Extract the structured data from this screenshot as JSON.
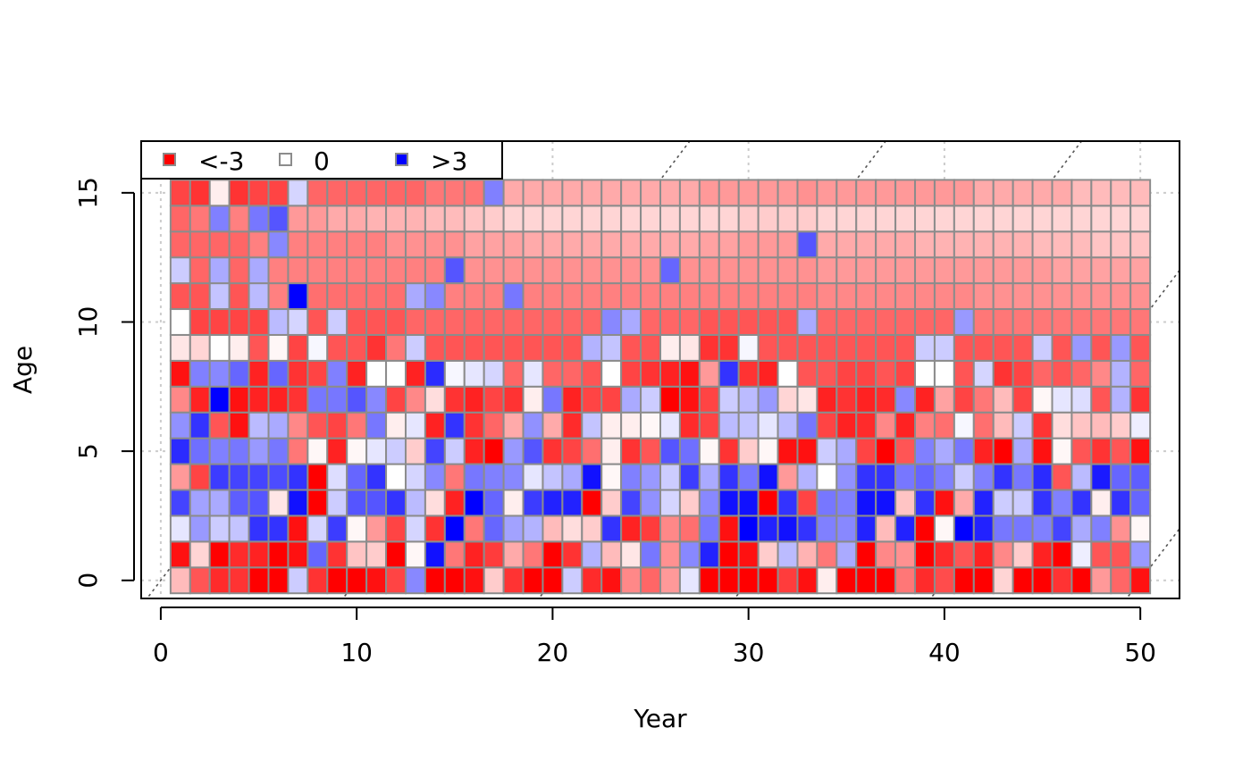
{
  "chart_data": {
    "type": "heatmap",
    "title": "",
    "xlabel": "Year",
    "ylabel": "Age",
    "xlim": [
      -1,
      52
    ],
    "ylim": [
      -0.7,
      17
    ],
    "x_ticks": [
      0,
      10,
      20,
      30,
      40,
      50
    ],
    "x_tick_labels": [
      "0",
      "10",
      "20",
      "30",
      "40",
      "50"
    ],
    "y_ticks": [
      0,
      5,
      10,
      15
    ],
    "y_tick_labels": [
      "0",
      "5",
      "10",
      "15"
    ],
    "grid": true,
    "legend_position": "top-left",
    "legend": [
      {
        "label": "<-3",
        "color": "#ff0000"
      },
      {
        "label": "0",
        "color": "#ffffff"
      },
      {
        "label": ">3",
        "color": "#0000ff"
      }
    ],
    "color_scale": {
      "min": -3,
      "mid": 0,
      "max": 3,
      "low_color": "#ff0000",
      "mid_color": "#ffffff",
      "high_color": "#0000ff"
    },
    "cell_border_color": "#8c8c8c",
    "x_values": [
      1,
      2,
      3,
      4,
      5,
      6,
      7,
      8,
      9,
      10,
      11,
      12,
      13,
      14,
      15,
      16,
      17,
      18,
      19,
      20,
      21,
      22,
      23,
      24,
      25,
      26,
      27,
      28,
      29,
      30,
      31,
      32,
      33,
      34,
      35,
      36,
      37,
      38,
      39,
      40,
      41,
      42,
      43,
      44,
      45,
      46,
      47,
      48,
      49,
      50
    ],
    "y_values": [
      0,
      1,
      2,
      3,
      4,
      5,
      6,
      7,
      8,
      9,
      10,
      11,
      12,
      13,
      14,
      15
    ],
    "z_rows_by_age": [
      [
        -0.8,
        -2.0,
        -2.5,
        -2.4,
        -3.0,
        -3.0,
        0.6,
        -2.4,
        -3.0,
        -3.0,
        -2.8,
        -2.2,
        1.4,
        -3.0,
        -3.0,
        -2.8,
        -0.6,
        -2.4,
        -3.0,
        -3.0,
        0.6,
        -2.5,
        -2.8,
        -1.4,
        -1.8,
        -1.2,
        0.3,
        -3.0,
        -3.0,
        -3.0,
        -3.0,
        -2.3,
        -2.8,
        -0.2,
        -3.0,
        -3.0,
        -3.0,
        -1.6,
        -2.5,
        -2.1,
        -3.0,
        -3.0,
        -0.5,
        -3.0,
        -3.0,
        -2.4,
        -3.0,
        -1.2,
        -1.8,
        -2.8
      ],
      [
        -2.8,
        -0.5,
        -3.0,
        -2.5,
        -2.6,
        -3.0,
        -2.8,
        1.8,
        -2.4,
        -0.7,
        -0.6,
        -3.0,
        -0.1,
        2.8,
        -1.6,
        -2.6,
        -2.3,
        -1.0,
        -1.6,
        -3.0,
        -2.4,
        0.9,
        -0.8,
        -0.3,
        1.6,
        -1.3,
        1.4,
        2.6,
        -3.0,
        -2.8,
        -0.6,
        0.8,
        -0.9,
        -1.6,
        1.0,
        -3.0,
        -1.4,
        -1.3,
        -3.0,
        -2.5,
        -2.0,
        -2.6,
        -1.4,
        -0.6,
        -2.6,
        -3.0,
        0.2,
        -2.0,
        -2.0,
        1.2
      ],
      [
        0.3,
        1.2,
        0.6,
        0.7,
        2.4,
        2.4,
        -2.8,
        0.5,
        2.3,
        -0.1,
        -1.2,
        -2.2,
        0.5,
        -2.4,
        3.0,
        -1.6,
        1.8,
        1.1,
        0.9,
        -0.8,
        -0.4,
        -0.6,
        2.4,
        -2.6,
        -2.3,
        -1.4,
        -1.7,
        1.6,
        -2.8,
        3.0,
        2.6,
        2.8,
        2.4,
        1.5,
        1.4,
        2.6,
        -0.8,
        2.6,
        -3.0,
        -0.1,
        3.0,
        2.6,
        1.6,
        1.6,
        1.5,
        2.2,
        1.0,
        1.5,
        -1.3,
        -0.1
      ],
      [
        2.2,
        1.1,
        1.0,
        1.9,
        2.0,
        -0.3,
        2.8,
        -3.0,
        0.6,
        2.0,
        2.0,
        2.4,
        0.8,
        -0.4,
        -2.6,
        3.0,
        1.8,
        -0.2,
        2.3,
        2.6,
        2.6,
        -3.0,
        -0.6,
        2.2,
        1.3,
        0.5,
        -0.6,
        1.4,
        2.8,
        2.8,
        -3.0,
        2.4,
        -2.2,
        1.6,
        1.5,
        2.8,
        2.8,
        -0.7,
        2.4,
        -2.8,
        -1.0,
        2.6,
        0.6,
        0.6,
        2.4,
        1.5,
        2.4,
        -0.2,
        2.4,
        1.8
      ],
      [
        -1.2,
        -2.2,
        2.3,
        2.2,
        2.2,
        2.1,
        2.4,
        -3.0,
        0.4,
        1.8,
        2.4,
        0.0,
        0.5,
        1.4,
        -1.6,
        1.6,
        1.5,
        1.4,
        0.3,
        0.7,
        1.0,
        2.8,
        -0.1,
        1.5,
        1.2,
        0.6,
        2.3,
        1.0,
        2.4,
        1.6,
        2.8,
        -1.2,
        0.9,
        0.0,
        1.3,
        2.4,
        2.4,
        1.6,
        1.8,
        1.5,
        0.6,
        1.5,
        2.4,
        1.6,
        2.5,
        -2.0,
        0.8,
        2.7,
        1.8,
        1.9
      ],
      [
        2.5,
        1.7,
        1.5,
        1.6,
        1.2,
        1.6,
        -1.6,
        -0.1,
        -2.6,
        -0.1,
        0.3,
        0.6,
        -0.6,
        2.2,
        0.6,
        -2.6,
        -3.0,
        1.2,
        2.0,
        -2.4,
        -2.2,
        -1.7,
        -0.2,
        -2.4,
        -2.0,
        2.0,
        1.7,
        -0.1,
        -2.4,
        -0.6,
        -0.1,
        -2.8,
        -2.8,
        0.6,
        1.0,
        -2.2,
        -3.0,
        -2.0,
        1.5,
        1.0,
        1.6,
        -2.6,
        -3.0,
        1.0,
        -2.8,
        -0.1,
        -2.0,
        -2.4,
        -2.0,
        -2.8
      ],
      [
        1.3,
        2.4,
        -2.0,
        -2.8,
        0.8,
        1.0,
        -1.4,
        -2.0,
        -2.2,
        -1.6,
        1.6,
        -0.2,
        0.3,
        -2.6,
        2.4,
        -2.4,
        -1.8,
        -1.0,
        1.3,
        -1.0,
        -2.5,
        0.7,
        -0.2,
        -0.2,
        -0.1,
        0.3,
        -2.5,
        -2.2,
        0.8,
        0.7,
        0.3,
        0.8,
        1.6,
        -2.2,
        -2.6,
        -2.5,
        -1.4,
        -2.6,
        -1.5,
        -1.7,
        0.1,
        -1.7,
        -0.8,
        0.6,
        -2.4,
        -0.4,
        -0.7,
        -0.8,
        -0.6,
        0.2
      ],
      [
        -1.4,
        -2.6,
        3.0,
        -2.8,
        -2.6,
        -2.6,
        -2.4,
        1.6,
        1.6,
        2.0,
        1.4,
        -2.2,
        -1.4,
        -0.4,
        -2.4,
        -2.6,
        -2.2,
        -2.4,
        -0.2,
        1.6,
        -2.6,
        -2.2,
        -2.2,
        1.0,
        0.6,
        -3.0,
        -2.8,
        -2.2,
        0.6,
        0.8,
        1.2,
        -0.5,
        -0.3,
        -2.6,
        -2.4,
        -2.6,
        -2.5,
        1.4,
        -2.6,
        -1.1,
        -2.2,
        -1.6,
        -0.8,
        -2.2,
        -0.1,
        0.3,
        0.4,
        -2.0,
        0.9,
        -2.4
      ],
      [
        -2.8,
        1.5,
        1.4,
        1.8,
        -2.6,
        1.8,
        -2.4,
        -2.2,
        1.5,
        -2.6,
        0.0,
        0.0,
        -2.6,
        2.5,
        0.1,
        0.3,
        0.5,
        -1.8,
        0.3,
        -1.8,
        -1.8,
        -2.0,
        0.0,
        -2.2,
        -2.4,
        -2.6,
        -2.8,
        -1.2,
        2.4,
        -2.4,
        -2.6,
        0.0,
        -2.0,
        -2.0,
        -2.2,
        -2.2,
        -2.0,
        -2.2,
        0.0,
        0.0,
        -2.0,
        0.5,
        -2.4,
        -2.2,
        -1.8,
        -2.0,
        -1.8,
        -1.4,
        0.9,
        -1.8
      ],
      [
        -0.3,
        -0.5,
        0.0,
        -0.2,
        -2.0,
        -0.1,
        -2.2,
        0.1,
        -2.0,
        -2.0,
        -2.4,
        -1.6,
        0.6,
        -2.0,
        -2.0,
        -2.0,
        -2.0,
        -2.0,
        -2.0,
        -2.0,
        -2.0,
        0.9,
        0.7,
        -2.0,
        -2.0,
        -0.2,
        -0.3,
        -2.4,
        -2.4,
        0.1,
        -2.0,
        -2.0,
        -2.0,
        -2.0,
        -2.0,
        -2.0,
        -2.0,
        -2.0,
        0.6,
        0.6,
        -2.0,
        -2.0,
        -2.0,
        -2.0,
        0.6,
        -2.0,
        1.2,
        -2.0,
        1.2,
        -2.0
      ],
      [
        0.0,
        -2.2,
        -2.2,
        -2.2,
        -2.2,
        0.8,
        0.5,
        -2.0,
        0.6,
        -2.0,
        -2.0,
        -2.0,
        -1.8,
        -1.8,
        -1.8,
        -1.8,
        -1.8,
        -1.8,
        -1.8,
        -1.8,
        -1.8,
        -1.8,
        1.4,
        1.0,
        -1.8,
        -1.8,
        -1.8,
        -2.0,
        -2.0,
        -2.0,
        -2.0,
        -2.0,
        1.0,
        -1.8,
        -1.8,
        -1.8,
        -1.8,
        -1.8,
        -1.8,
        -1.8,
        1.2,
        -1.6,
        -1.6,
        -1.6,
        -1.6,
        -1.6,
        -1.6,
        -1.6,
        -1.6,
        -1.6
      ],
      [
        -2.0,
        -2.0,
        0.7,
        -2.0,
        0.8,
        -1.5,
        3.0,
        -1.7,
        -1.7,
        -1.7,
        -1.7,
        -1.7,
        1.0,
        1.4,
        -1.5,
        -1.5,
        -1.5,
        1.6,
        -1.5,
        -1.5,
        -1.5,
        -1.5,
        -1.5,
        -1.5,
        -1.5,
        -1.5,
        -1.5,
        -1.5,
        -1.5,
        -1.5,
        -1.5,
        -1.5,
        -1.5,
        -1.4,
        -1.4,
        -1.4,
        -1.4,
        -1.4,
        -1.4,
        -1.4,
        -1.4,
        -1.3,
        -1.3,
        -1.3,
        -1.3,
        -1.3,
        -1.3,
        -1.3,
        -1.3,
        -1.3
      ],
      [
        0.6,
        -1.8,
        1.0,
        -1.8,
        1.0,
        -1.5,
        -1.5,
        -1.5,
        -1.5,
        -1.5,
        -1.5,
        -1.5,
        -1.5,
        -1.5,
        2.0,
        -1.3,
        -1.3,
        -1.3,
        -1.3,
        -1.3,
        -1.3,
        -1.3,
        -1.3,
        -1.3,
        -1.3,
        1.8,
        -1.3,
        -1.3,
        -1.3,
        -1.3,
        -1.3,
        -1.3,
        -1.3,
        -1.2,
        -1.2,
        -1.2,
        -1.2,
        -1.2,
        -1.2,
        -1.2,
        -1.2,
        -1.2,
        -1.2,
        -1.2,
        -1.2,
        -1.1,
        -1.1,
        -1.1,
        -1.1,
        -1.1
      ],
      [
        -1.8,
        -1.8,
        -1.8,
        -1.8,
        -1.5,
        1.4,
        -1.5,
        -1.5,
        -1.5,
        -1.5,
        -1.5,
        -1.3,
        -1.3,
        -1.3,
        -1.3,
        -1.1,
        -1.1,
        -1.1,
        -1.0,
        -1.0,
        -1.0,
        -1.0,
        -1.0,
        -1.0,
        -1.0,
        -1.0,
        -1.0,
        -1.1,
        -1.1,
        -1.2,
        -1.2,
        -1.2,
        2.0,
        -1.0,
        -1.0,
        -1.0,
        -1.0,
        -1.0,
        -0.9,
        -0.9,
        -0.9,
        -0.9,
        -0.9,
        -0.9,
        -0.8,
        -0.8,
        -0.8,
        -0.7,
        -0.7,
        -0.7
      ],
      [
        -1.8,
        -1.6,
        1.5,
        -1.5,
        1.6,
        2.0,
        -1.2,
        -1.2,
        -1.0,
        -1.0,
        -0.9,
        -0.9,
        -0.9,
        -0.8,
        -0.8,
        -0.7,
        -0.6,
        -0.5,
        -0.5,
        -0.5,
        -0.5,
        -0.5,
        -0.5,
        -0.5,
        -0.5,
        -0.5,
        -0.5,
        -0.5,
        -0.5,
        -0.6,
        -0.6,
        -0.6,
        -0.6,
        -0.5,
        -0.5,
        -0.5,
        -0.5,
        -0.5,
        -0.5,
        -0.5,
        -0.5,
        -0.5,
        -0.5,
        -0.5,
        -0.5,
        -0.5,
        -0.5,
        -0.5,
        -0.5,
        -0.5
      ],
      [
        -2.2,
        -2.4,
        -0.2,
        -2.4,
        -2.2,
        -2.2,
        0.5,
        -1.8,
        -1.8,
        -1.8,
        -1.8,
        -1.8,
        -1.8,
        -1.6,
        -1.6,
        -1.6,
        1.5,
        -1.0,
        -1.0,
        -1.0,
        -1.0,
        -1.0,
        -1.0,
        -1.0,
        -1.0,
        -1.0,
        -1.0,
        -1.2,
        -1.2,
        -1.2,
        -1.2,
        -1.2,
        -1.3,
        -1.2,
        -1.2,
        -1.2,
        -1.2,
        -1.2,
        -1.2,
        -1.2,
        -1.2,
        -1.0,
        -1.0,
        -1.0,
        -1.0,
        -1.0,
        -0.8,
        -0.8,
        -0.8,
        -0.8
      ]
    ]
  }
}
